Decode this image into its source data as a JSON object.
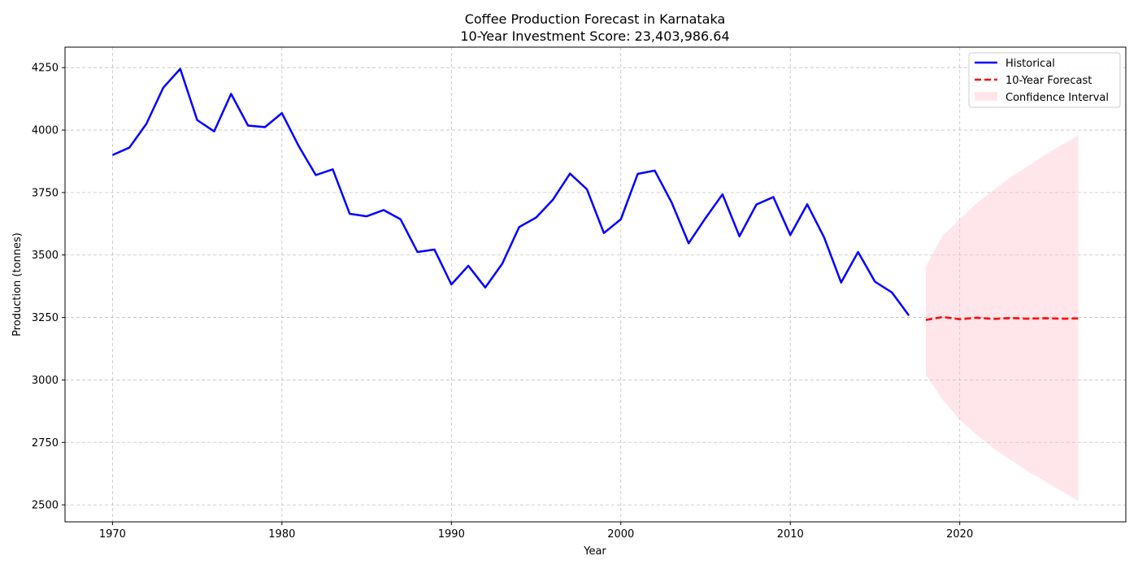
{
  "chart_data": {
    "type": "line",
    "title": "Coffee Production Forecast in Karnataka",
    "subtitle": "10-Year Investment Score: 23,403,986.64",
    "xlabel": "Year",
    "ylabel": "Production (tonnes)",
    "xlim": [
      1967.2,
      2029.8
    ],
    "ylim": [
      2432,
      4332
    ],
    "x_ticks": [
      1970,
      1980,
      1990,
      2000,
      2010,
      2020
    ],
    "y_ticks": [
      2500,
      2750,
      3000,
      3250,
      3500,
      3750,
      4000,
      4250
    ],
    "grid": true,
    "legend_position": "top-right",
    "series": [
      {
        "name": "Historical",
        "style": "solid",
        "color": "#0000ff",
        "x": [
          1970,
          1971,
          1972,
          1973,
          1974,
          1975,
          1976,
          1977,
          1978,
          1979,
          1980,
          1981,
          1982,
          1983,
          1984,
          1985,
          1986,
          1987,
          1988,
          1989,
          1990,
          1991,
          1992,
          1993,
          1994,
          1995,
          1996,
          1997,
          1998,
          1999,
          2000,
          2001,
          2002,
          2003,
          2004,
          2005,
          2006,
          2007,
          2008,
          2009,
          2010,
          2011,
          2012,
          2013,
          2014,
          2015,
          2016,
          2017
        ],
        "y": [
          3900,
          3930,
          4025,
          4170,
          4245,
          4040,
          3995,
          4145,
          4018,
          4012,
          4068,
          3935,
          3820,
          3843,
          3665,
          3655,
          3680,
          3643,
          3512,
          3522,
          3382,
          3457,
          3370,
          3465,
          3612,
          3650,
          3722,
          3826,
          3763,
          3588,
          3643,
          3825,
          3838,
          3710,
          3547,
          3648,
          3743,
          3575,
          3702,
          3732,
          3580,
          3703,
          3570,
          3390,
          3512,
          3393,
          3350,
          3258
        ]
      },
      {
        "name": "10-Year Forecast",
        "style": "dashed",
        "color": "#ff0000",
        "x": [
          2018,
          2019,
          2020,
          2021,
          2022,
          2023,
          2024,
          2025,
          2026,
          2027
        ],
        "y": [
          3240,
          3252,
          3243,
          3249,
          3244,
          3248,
          3245,
          3247,
          3245,
          3246
        ]
      }
    ],
    "confidence_interval": {
      "name": "Confidence Interval",
      "color": "#ffc0cb",
      "x": [
        2018,
        2019,
        2020,
        2021,
        2022,
        2023,
        2024,
        2025,
        2026,
        2027
      ],
      "lower": [
        3020,
        2920,
        2840,
        2780,
        2725,
        2680,
        2635,
        2595,
        2555,
        2515
      ],
      "upper": [
        3455,
        3578,
        3642,
        3708,
        3760,
        3812,
        3855,
        3900,
        3940,
        3978
      ]
    }
  }
}
